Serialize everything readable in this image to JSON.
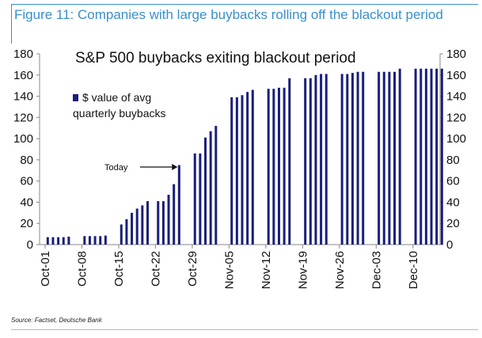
{
  "figure_title": "Figure 11: Companies with large buybacks rolling off the blackout period",
  "source": "Source: Factset, Deutsche Bank",
  "chart_data": {
    "type": "bar",
    "title": "S&P 500 buybacks exiting blackout period",
    "legend": "$ value of avg quarterly buybacks",
    "legend_lines": [
      "$ value of avg",
      "quarterly buybacks"
    ],
    "legend_placement": "top-left",
    "annotation": "Today",
    "annotation_day": 25,
    "ylim": [
      0,
      180
    ],
    "yticks": [
      0,
      20,
      40,
      60,
      80,
      100,
      120,
      140,
      160,
      180
    ],
    "y_axes": [
      "left",
      "right"
    ],
    "x_unit": "days since Oct-01",
    "xticks": [
      {
        "day": 0,
        "label": "Oct-01"
      },
      {
        "day": 7,
        "label": "Oct-08"
      },
      {
        "day": 14,
        "label": "Oct-15"
      },
      {
        "day": 21,
        "label": "Oct-22"
      },
      {
        "day": 28,
        "label": "Oct-29"
      },
      {
        "day": 35,
        "label": "Nov-05"
      },
      {
        "day": 42,
        "label": "Nov-12"
      },
      {
        "day": 49,
        "label": "Nov-19"
      },
      {
        "day": 56,
        "label": "Nov-26"
      },
      {
        "day": 63,
        "label": "Dec-03"
      },
      {
        "day": 70,
        "label": "Dec-10"
      }
    ],
    "days": [
      0,
      1,
      2,
      3,
      4,
      7,
      8,
      9,
      10,
      11,
      14,
      15,
      16,
      17,
      18,
      19,
      21,
      22,
      23,
      24,
      25,
      28,
      29,
      30,
      31,
      32,
      35,
      36,
      37,
      38,
      39,
      42,
      43,
      44,
      45,
      46,
      49,
      50,
      51,
      52,
      53,
      56,
      57,
      58,
      59,
      60,
      63,
      64,
      65,
      66,
      67,
      70,
      71,
      72,
      73,
      74,
      75
    ],
    "values": [
      7,
      7,
      7,
      7,
      7.5,
      8,
      8,
      8,
      8,
      8.5,
      19,
      24,
      30,
      34,
      37,
      41,
      41,
      41,
      47,
      57,
      75,
      86,
      86,
      101,
      107,
      112,
      139,
      139,
      141,
      144,
      146,
      147,
      147,
      148,
      148,
      157,
      157,
      157,
      160,
      161,
      161,
      161,
      161,
      162,
      163,
      163,
      163,
      163,
      163,
      163,
      166,
      166,
      166,
      166,
      166,
      166,
      166
    ],
    "bar_color": "#1a1f7a"
  }
}
